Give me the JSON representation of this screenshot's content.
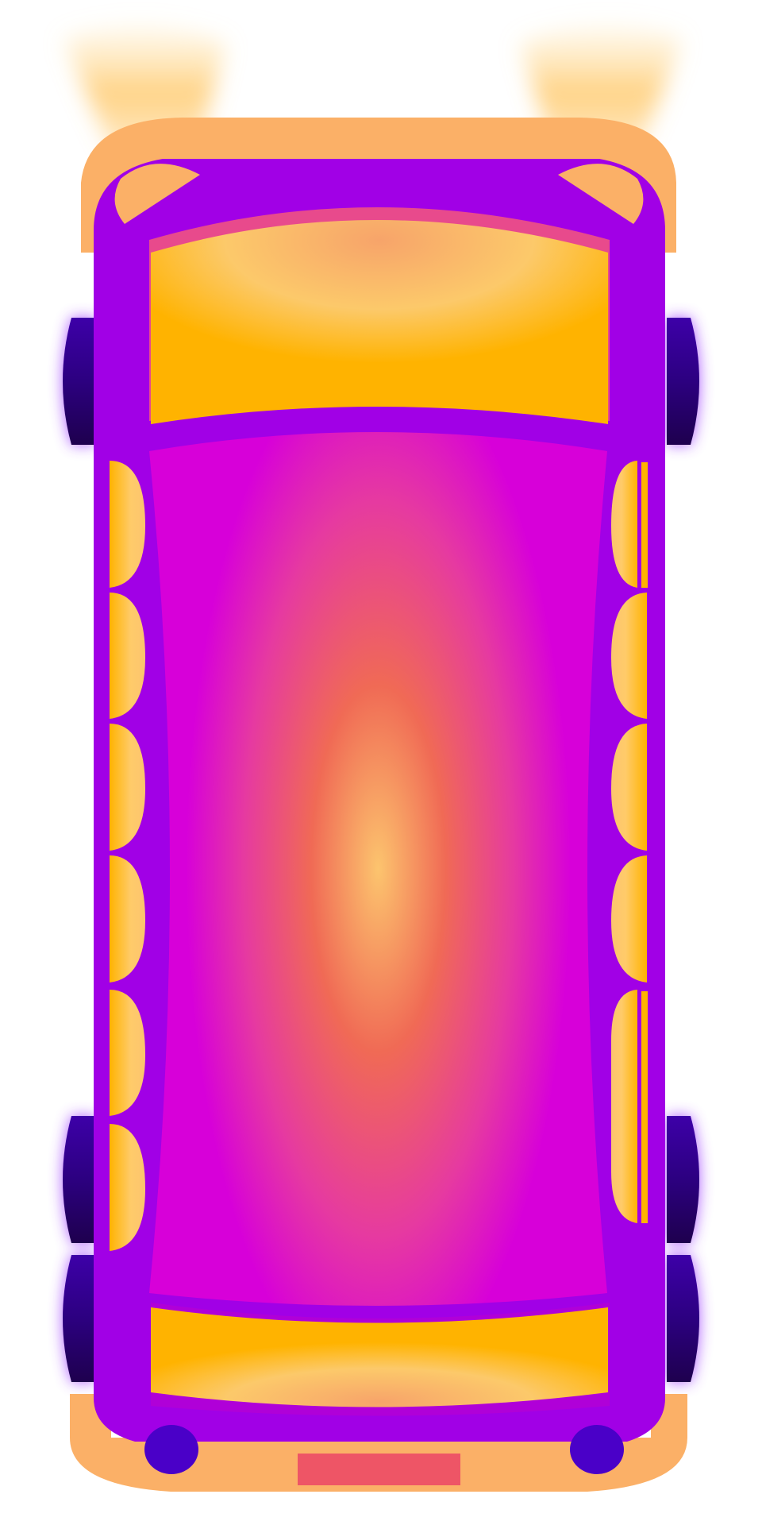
{
  "illustration": {
    "subject": "bus-top-view",
    "colors": {
      "background": "#ffffff",
      "body_purple": "#a100e6",
      "body_edge": "#8a00d4",
      "bumper_orange": "#fbb067",
      "headlight_glow": "#ffc766",
      "windshield_top": "#fccb6a",
      "windshield_bottom": "#ffb300",
      "roof_center": "#fcc46e",
      "roof_mid": "#f06a55",
      "roof_edge": "#d700d9",
      "side_window": "#ffc35c",
      "wheel_dark": "#1e004e",
      "wheel_mid": "#3d00a8",
      "wheel_glow": "#a64dff",
      "tail_light": "#4a00c8",
      "license_plate": "#ee5566"
    }
  }
}
